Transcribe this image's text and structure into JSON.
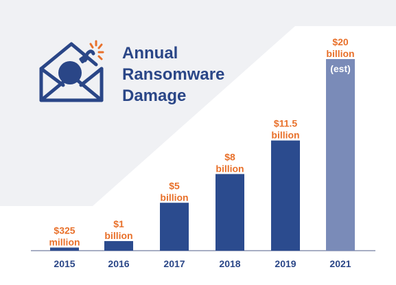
{
  "title_lines": [
    "Annual",
    "Ransomware",
    "Damage"
  ],
  "colors": {
    "bar": "#2b4b8e",
    "bar_estimate": "#7a8bb8",
    "label": "#e8702a",
    "label_estimate": "#ffffff",
    "title": "#2a4687",
    "axis_text": "#2a4687",
    "background_shape": "#f0f1f4",
    "baseline": "#8a93b0"
  },
  "icons": [
    "envelope-bomb-icon"
  ],
  "chart_data": {
    "type": "bar",
    "categories": [
      "2015",
      "2016",
      "2017",
      "2018",
      "2019",
      "2021"
    ],
    "values": [
      0.325,
      1,
      5,
      8,
      11.5,
      20
    ],
    "units": "billion USD",
    "value_labels": [
      [
        "$325",
        "million"
      ],
      [
        "$1",
        "billion"
      ],
      [
        "$5",
        "billion"
      ],
      [
        "$8",
        "billion"
      ],
      [
        "$11.5",
        "billion"
      ],
      [
        "$20",
        "billion"
      ]
    ],
    "annotations": [
      {
        "category": "2021",
        "text": "(est)"
      }
    ],
    "estimated": [
      false,
      false,
      false,
      false,
      false,
      true
    ],
    "title": "Annual Ransomware Damage",
    "xlabel": "",
    "ylabel": "",
    "ylim": [
      0,
      20
    ],
    "grid": false,
    "legend": "none"
  }
}
